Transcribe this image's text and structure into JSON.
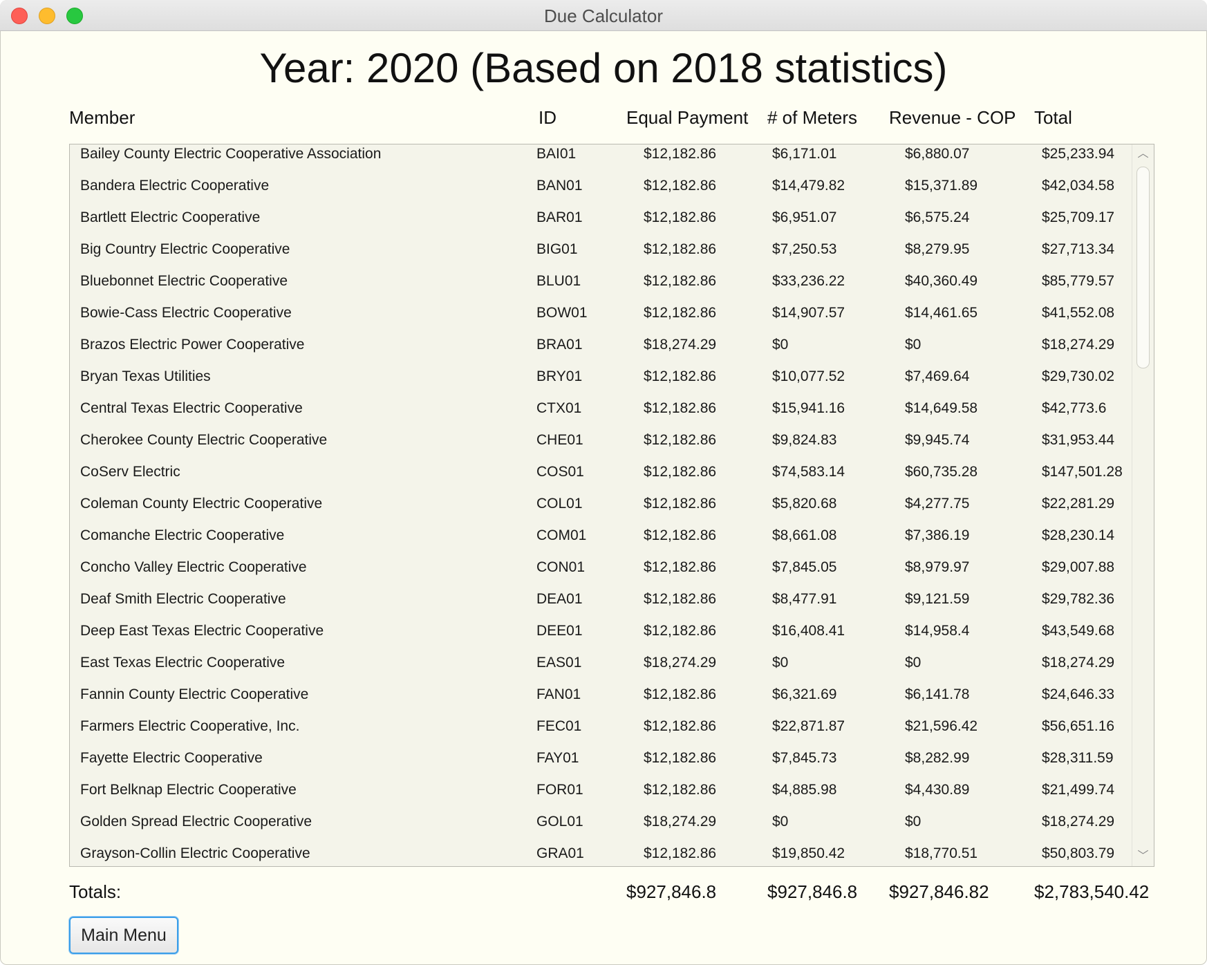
{
  "window": {
    "title": "Due Calculator"
  },
  "heading": "Year: 2020 (Based on 2018 statistics)",
  "columns": {
    "member": "Member",
    "id": "ID",
    "equal_payment": "Equal Payment",
    "meters": "# of Meters",
    "revenue": "Revenue - COP",
    "total": "Total"
  },
  "rows": [
    {
      "member": "Bailey County Electric Cooperative Association",
      "id": "BAI01",
      "equal": "$12,182.86",
      "meters": "$6,171.01",
      "revenue": "$6,880.07",
      "total": "$25,233.94"
    },
    {
      "member": "Bandera Electric Cooperative",
      "id": "BAN01",
      "equal": "$12,182.86",
      "meters": "$14,479.82",
      "revenue": "$15,371.89",
      "total": "$42,034.58"
    },
    {
      "member": "Bartlett Electric Cooperative",
      "id": "BAR01",
      "equal": "$12,182.86",
      "meters": "$6,951.07",
      "revenue": "$6,575.24",
      "total": "$25,709.17"
    },
    {
      "member": "Big Country Electric Cooperative",
      "id": "BIG01",
      "equal": "$12,182.86",
      "meters": "$7,250.53",
      "revenue": "$8,279.95",
      "total": "$27,713.34"
    },
    {
      "member": "Bluebonnet Electric Cooperative",
      "id": "BLU01",
      "equal": "$12,182.86",
      "meters": "$33,236.22",
      "revenue": "$40,360.49",
      "total": "$85,779.57"
    },
    {
      "member": "Bowie-Cass Electric Cooperative",
      "id": "BOW01",
      "equal": "$12,182.86",
      "meters": "$14,907.57",
      "revenue": "$14,461.65",
      "total": "$41,552.08"
    },
    {
      "member": "Brazos Electric Power Cooperative",
      "id": "BRA01",
      "equal": "$18,274.29",
      "meters": "$0",
      "revenue": "$0",
      "total": "$18,274.29"
    },
    {
      "member": "Bryan Texas Utilities",
      "id": "BRY01",
      "equal": "$12,182.86",
      "meters": "$10,077.52",
      "revenue": "$7,469.64",
      "total": "$29,730.02"
    },
    {
      "member": "Central Texas Electric Cooperative",
      "id": "CTX01",
      "equal": "$12,182.86",
      "meters": "$15,941.16",
      "revenue": "$14,649.58",
      "total": "$42,773.6"
    },
    {
      "member": "Cherokee County Electric Cooperative",
      "id": "CHE01",
      "equal": "$12,182.86",
      "meters": "$9,824.83",
      "revenue": "$9,945.74",
      "total": "$31,953.44"
    },
    {
      "member": "CoServ Electric",
      "id": "COS01",
      "equal": "$12,182.86",
      "meters": "$74,583.14",
      "revenue": "$60,735.28",
      "total": "$147,501.28"
    },
    {
      "member": "Coleman County Electric Cooperative",
      "id": "COL01",
      "equal": "$12,182.86",
      "meters": "$5,820.68",
      "revenue": "$4,277.75",
      "total": "$22,281.29"
    },
    {
      "member": "Comanche Electric Cooperative",
      "id": "COM01",
      "equal": "$12,182.86",
      "meters": "$8,661.08",
      "revenue": "$7,386.19",
      "total": "$28,230.14"
    },
    {
      "member": "Concho Valley Electric Cooperative",
      "id": "CON01",
      "equal": "$12,182.86",
      "meters": "$7,845.05",
      "revenue": "$8,979.97",
      "total": "$29,007.88"
    },
    {
      "member": "Deaf Smith Electric Cooperative",
      "id": "DEA01",
      "equal": "$12,182.86",
      "meters": "$8,477.91",
      "revenue": "$9,121.59",
      "total": "$29,782.36"
    },
    {
      "member": "Deep East Texas Electric Cooperative",
      "id": "DEE01",
      "equal": "$12,182.86",
      "meters": "$16,408.41",
      "revenue": "$14,958.4",
      "total": "$43,549.68"
    },
    {
      "member": "East Texas Electric Cooperative",
      "id": "EAS01",
      "equal": "$18,274.29",
      "meters": "$0",
      "revenue": "$0",
      "total": "$18,274.29"
    },
    {
      "member": "Fannin County Electric Cooperative",
      "id": "FAN01",
      "equal": "$12,182.86",
      "meters": "$6,321.69",
      "revenue": "$6,141.78",
      "total": "$24,646.33"
    },
    {
      "member": "Farmers Electric Cooperative, Inc.",
      "id": "FEC01",
      "equal": "$12,182.86",
      "meters": "$22,871.87",
      "revenue": "$21,596.42",
      "total": "$56,651.16"
    },
    {
      "member": "Fayette Electric Cooperative",
      "id": "FAY01",
      "equal": "$12,182.86",
      "meters": "$7,845.73",
      "revenue": "$8,282.99",
      "total": "$28,311.59"
    },
    {
      "member": "Fort Belknap Electric Cooperative",
      "id": "FOR01",
      "equal": "$12,182.86",
      "meters": "$4,885.98",
      "revenue": "$4,430.89",
      "total": "$21,499.74"
    },
    {
      "member": "Golden Spread Electric Cooperative",
      "id": "GOL01",
      "equal": "$18,274.29",
      "meters": "$0",
      "revenue": "$0",
      "total": "$18,274.29"
    },
    {
      "member": "Grayson-Collin Electric Cooperative",
      "id": "GRA01",
      "equal": "$12,182.86",
      "meters": "$19,850.42",
      "revenue": "$18,770.51",
      "total": "$50,803.79"
    }
  ],
  "totals": {
    "label": "Totals:",
    "equal_payment": "$927,846.8",
    "meters": "$927,846.8",
    "revenue": "$927,846.82",
    "total": "$2,783,540.42"
  },
  "scrollbar": {
    "up_icon": "chevron-up-icon",
    "down_icon": "chevron-down-icon"
  },
  "buttons": {
    "main_menu": "Main Menu"
  }
}
